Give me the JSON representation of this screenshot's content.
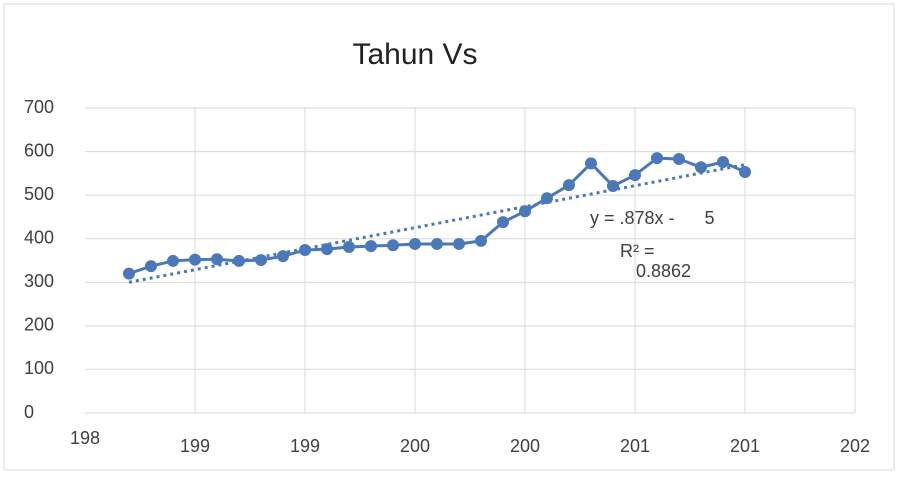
{
  "chart_data": {
    "type": "line",
    "title": "Tahun Vs",
    "x": [
      1987,
      1988,
      1989,
      1990,
      1991,
      1992,
      1993,
      1994,
      1995,
      1996,
      1997,
      1998,
      1999,
      2000,
      2001,
      2002,
      2003,
      2004,
      2005,
      2006,
      2007,
      2008,
      2009,
      2010,
      2011,
      2012,
      2013,
      2014,
      2015
    ],
    "series": [
      {
        "color": "#4a78b8",
        "values": [
          320,
          337,
          349,
          352,
          353,
          349,
          351,
          360,
          374,
          376,
          381,
          383,
          385,
          388,
          388,
          388,
          395,
          438,
          463,
          493,
          523,
          573,
          521,
          546,
          585,
          583,
          564,
          576,
          553
        ]
      }
    ],
    "trendline": {
      "x": [
        1987,
        2015
      ],
      "values": [
        300,
        570
      ],
      "color": "#4a78b8"
    },
    "annotations": [
      "y = .878x -      5",
      "R² =",
      "0.8862"
    ],
    "xlim": [
      1985,
      2020
    ],
    "xticks": [
      {
        "value": 1985,
        "label": "198"
      },
      {
        "value": 1990,
        "label": "199"
      },
      {
        "value": 1995,
        "label": "199"
      },
      {
        "value": 2000,
        "label": "200"
      },
      {
        "value": 2005,
        "label": "200"
      },
      {
        "value": 2010,
        "label": "201"
      },
      {
        "value": 2015,
        "label": "201"
      },
      {
        "value": 2020,
        "label": "202"
      }
    ],
    "ylim": [
      0,
      700
    ],
    "yticks": [
      0,
      100,
      200,
      300,
      400,
      500,
      600,
      700
    ],
    "grid": true
  }
}
